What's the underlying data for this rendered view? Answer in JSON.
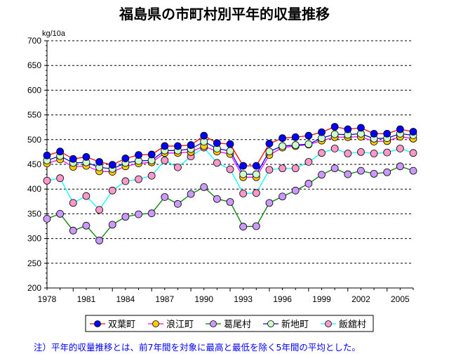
{
  "chart_data": {
    "type": "line",
    "title": "福島県の市町村別平年的収量推移",
    "ylabel": "kg/10a",
    "xlabel": "",
    "ylim": [
      200,
      700
    ],
    "yticks": [
      "200",
      "250",
      "300",
      "350",
      "400",
      "450",
      "500",
      "550",
      "600",
      "650",
      "700"
    ],
    "xticks": [
      "1978",
      "1981",
      "1984",
      "1987",
      "1990",
      "1993",
      "1996",
      "1999",
      "2002",
      "2005"
    ],
    "grid": true,
    "legend": "bottom",
    "x": [
      1978,
      1979,
      1980,
      1981,
      1982,
      1983,
      1984,
      1985,
      1986,
      1987,
      1988,
      1989,
      1990,
      1991,
      1992,
      1993,
      1994,
      1995,
      1996,
      1997,
      1998,
      1999,
      2000,
      2001,
      2002,
      2003,
      2004,
      2005,
      2006
    ],
    "series": [
      {
        "name": "双葉町",
        "line_color": "#ff0000",
        "marker_color": "#0000ff",
        "values": [
          468,
          476,
          461,
          465,
          455,
          449,
          462,
          469,
          470,
          487,
          487,
          489,
          508,
          493,
          491,
          447,
          447,
          492,
          503,
          505,
          508,
          515,
          526,
          521,
          524,
          512,
          512,
          521,
          516
        ]
      },
      {
        "name": "浪江町",
        "line_color": "#ff00ff",
        "marker_color": "#ffcc00",
        "values": [
          452,
          460,
          445,
          447,
          436,
          435,
          446,
          452,
          454,
          473,
          473,
          475,
          487,
          476,
          471,
          424,
          424,
          469,
          484,
          487,
          490,
          498,
          505,
          505,
          506,
          496,
          497,
          506,
          502
        ]
      },
      {
        "name": "葛尾村",
        "line_color": "#008000",
        "marker_color": "#cc99ff",
        "values": [
          340,
          350,
          316,
          326,
          296,
          328,
          344,
          349,
          351,
          384,
          370,
          390,
          404,
          380,
          374,
          324,
          325,
          372,
          385,
          397,
          411,
          429,
          442,
          430,
          437,
          431,
          434,
          446,
          437
        ]
      },
      {
        "name": "新地町",
        "line_color": "#0000ff",
        "marker_color": "#ccffcc",
        "values": [
          458,
          467,
          453,
          454,
          444,
          441,
          453,
          457,
          458,
          478,
          478,
          481,
          496,
          482,
          477,
          430,
          430,
          476,
          487,
          489,
          491,
          503,
          511,
          510,
          512,
          502,
          503,
          512,
          509
        ]
      },
      {
        "name": "飯舘村",
        "line_color": "#00ffff",
        "marker_color": "#ff99cc",
        "values": [
          417,
          422,
          372,
          386,
          358,
          397,
          416,
          420,
          427,
          458,
          444,
          466,
          484,
          453,
          440,
          391,
          392,
          439,
          442,
          442,
          455,
          473,
          482,
          472,
          475,
          472,
          474,
          482,
          473
        ]
      }
    ]
  },
  "note": "注）平年的収量推移とは、前7年間を対象に最高と最低を除く5年間の平均とした。"
}
